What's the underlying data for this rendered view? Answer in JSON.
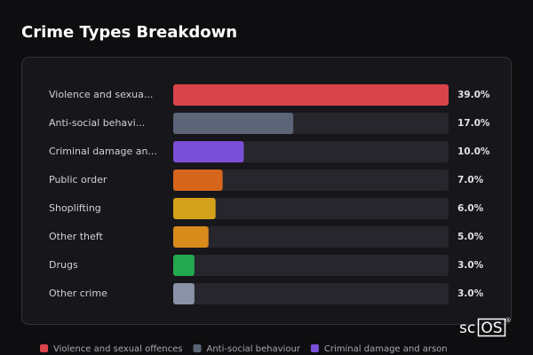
{
  "chart_data": {
    "type": "bar",
    "orientation": "horizontal",
    "title": "Crime Types Breakdown",
    "categories": [
      "Violence and sexua...",
      "Anti-social behavi...",
      "Criminal damage an...",
      "Public order",
      "Shoplifting",
      "Other theft",
      "Drugs",
      "Other crime"
    ],
    "values": [
      39,
      17,
      10,
      7,
      6,
      5,
      3,
      3
    ],
    "value_labels": [
      "39.0%",
      "17.0%",
      "10.0%",
      "7.0%",
      "6.0%",
      "5.0%",
      "3.0%",
      "3.0%"
    ],
    "colors": [
      "#d9434a",
      "#5b6577",
      "#7a4fd8",
      "#d7661d",
      "#d4a11a",
      "#d88b1b",
      "#22a84f",
      "#8a93a5"
    ],
    "legend_labels": [
      "Violence and sexual offences",
      "Anti-social behaviour",
      "Criminal damage and arson"
    ]
  },
  "watermark": {
    "text": "sc",
    "boxed": "OS",
    "mark": "®"
  }
}
